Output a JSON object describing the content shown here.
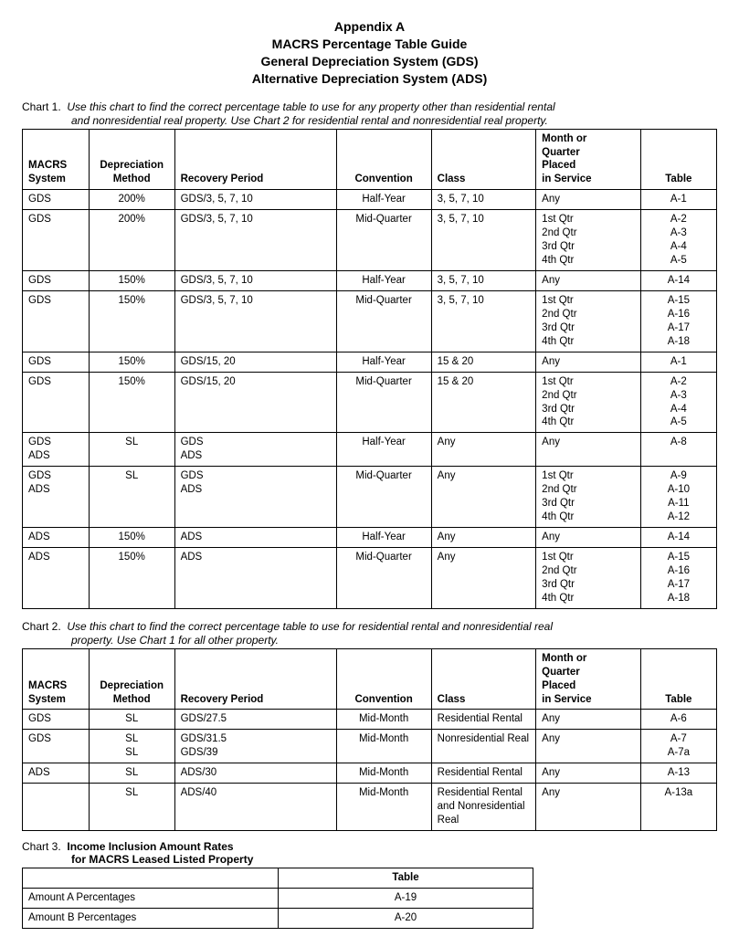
{
  "title": {
    "line1": "Appendix A",
    "line2": "MACRS Percentage Table Guide",
    "line3": "General Depreciation System (GDS)",
    "line4": "Alternative Depreciation System (ADS)"
  },
  "chart1": {
    "label": "Chart 1.",
    "caption_line1": "Use this chart to find the correct percentage table to use for any property other than residential rental",
    "caption_line2": "and nonresidential real property. Use Chart 2 for residential rental and nonresidential real property.",
    "headers": {
      "system": "MACRS\nSystem",
      "method": "Depreciation\nMethod",
      "recovery": "Recovery Period",
      "convention": "Convention",
      "class": "Class",
      "placed": "Month or\nQuarter\nPlaced\nin Service",
      "table": "Table"
    },
    "rows": [
      {
        "system": "GDS",
        "method": "200%",
        "recovery": "GDS/3, 5, 7, 10",
        "convention": "Half-Year",
        "class": "3, 5, 7, 10",
        "placed": "Any",
        "table": "A-1"
      },
      {
        "system": "GDS",
        "method": "200%",
        "recovery": "GDS/3, 5, 7, 10",
        "convention": "Mid-Quarter",
        "class": "3, 5, 7, 10",
        "placed": "1st Qtr\n2nd Qtr\n3rd Qtr\n4th Qtr",
        "table": "A-2\nA-3\nA-4\nA-5"
      },
      {
        "system": "GDS",
        "method": "150%",
        "recovery": "GDS/3, 5, 7, 10",
        "convention": "Half-Year",
        "class": "3, 5, 7, 10",
        "placed": "Any",
        "table": "A-14"
      },
      {
        "system": "GDS",
        "method": "150%",
        "recovery": "GDS/3, 5, 7, 10",
        "convention": "Mid-Quarter",
        "class": "3, 5, 7, 10",
        "placed": "1st Qtr\n2nd Qtr\n3rd Qtr\n4th Qtr",
        "table": "A-15\nA-16\nA-17\nA-18"
      },
      {
        "system": "GDS",
        "method": "150%",
        "recovery": "GDS/15, 20",
        "convention": "Half-Year",
        "class": "15 & 20",
        "placed": "Any",
        "table": "A-1"
      },
      {
        "system": "GDS",
        "method": "150%",
        "recovery": "GDS/15, 20",
        "convention": "Mid-Quarter",
        "class": "15 & 20",
        "placed": "1st Qtr\n2nd Qtr\n3rd Qtr\n4th Qtr",
        "table": "A-2\nA-3\nA-4\nA-5"
      },
      {
        "system": "GDS\nADS",
        "method": "SL",
        "recovery": "GDS\nADS",
        "convention": "Half-Year",
        "class": "Any",
        "placed": "Any",
        "table": "A-8"
      },
      {
        "system": "GDS\nADS",
        "method": "SL",
        "recovery": "GDS\nADS",
        "convention": "Mid-Quarter",
        "class": "Any",
        "placed": "1st Qtr\n2nd Qtr\n3rd Qtr\n4th Qtr",
        "table": "A-9\nA-10\nA-11\nA-12"
      },
      {
        "system": "ADS",
        "method": "150%",
        "recovery": "ADS",
        "convention": "Half-Year",
        "class": "Any",
        "placed": "Any",
        "table": "A-14"
      },
      {
        "system": "ADS",
        "method": "150%",
        "recovery": "ADS",
        "convention": "Mid-Quarter",
        "class": "Any",
        "placed": "1st Qtr\n2nd Qtr\n3rd Qtr\n4th Qtr",
        "table": "A-15\nA-16\nA-17\nA-18"
      }
    ]
  },
  "chart2": {
    "label": "Chart 2.",
    "caption_line1": "Use this chart to find the correct percentage table to use for residential rental and nonresidential real",
    "caption_line2": "property. Use Chart 1 for all other property.",
    "rows": [
      {
        "system": "GDS",
        "method": "SL",
        "recovery": "GDS/27.5",
        "convention": "Mid-Month",
        "class": "Residential Rental",
        "placed": "Any",
        "table": "A-6"
      },
      {
        "system": "GDS",
        "method": "SL\nSL",
        "recovery": "GDS/31.5\nGDS/39",
        "convention": "Mid-Month",
        "class": "Nonresidential Real",
        "placed": "Any",
        "table": "A-7\nA-7a"
      },
      {
        "system": "ADS",
        "method": "SL",
        "recovery": "ADS/30",
        "convention": "Mid-Month",
        "class": "Residential Rental",
        "placed": "Any",
        "table": "A-13"
      },
      {
        "system": "",
        "method": "SL",
        "recovery": "ADS/40",
        "convention": "Mid-Month",
        "class": "Residential Rental and Nonresidential Real",
        "placed": "Any",
        "table": "A-13a"
      }
    ]
  },
  "chart3": {
    "label": "Chart 3.",
    "title_line1": "Income Inclusion Amount Rates",
    "title_line2": "for MACRS Leased Listed Property",
    "header_table": "Table",
    "rows": [
      {
        "label": "Amount A Percentages",
        "table": "A-19"
      },
      {
        "label": "Amount B Percentages",
        "table": "A-20"
      }
    ]
  }
}
